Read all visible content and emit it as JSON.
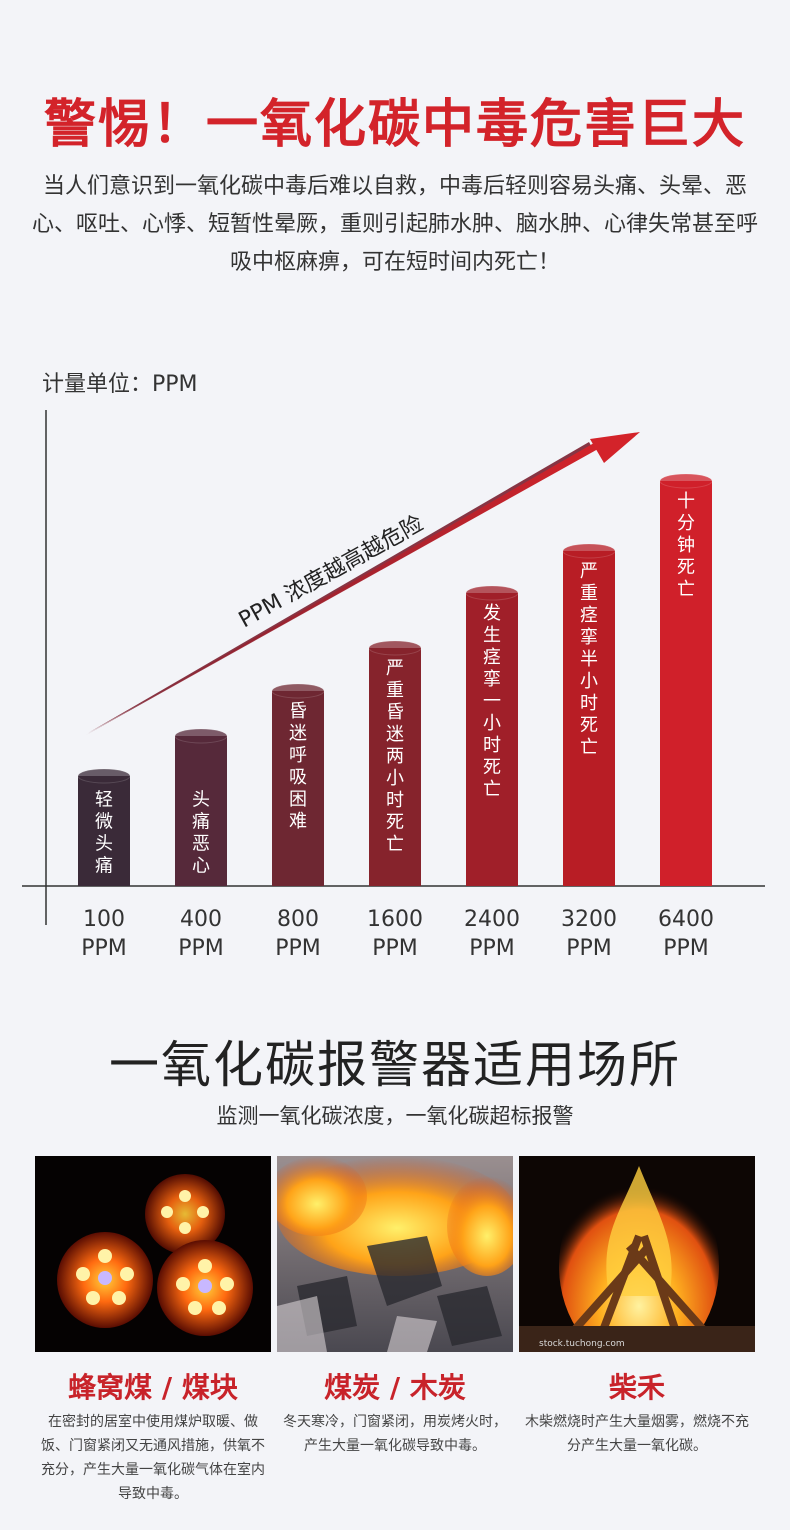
{
  "hero": {
    "title": "警惕！一氧化碳中毒危害巨大",
    "description": "当人们意识到一氧化碳中毒后难以自救，中毒后轻则容易头痛、头晕、恶心、呕吐、心悸、短暂性晕厥，重则引起肺水肿、脑水肿、心律失常甚至呼吸中枢麻痹，可在短时间内死亡！"
  },
  "chart_data": {
    "type": "bar",
    "unit_label": "计量单位：PPM",
    "trend_label": "PPM 浓度越高越危险",
    "categories": [
      "100 PPM",
      "400 PPM",
      "800 PPM",
      "1600 PPM",
      "2400 PPM",
      "3200 PPM",
      "6400 PPM"
    ],
    "tick_lines": [
      [
        "100",
        "PPM"
      ],
      [
        "400",
        "PPM"
      ],
      [
        "800",
        "PPM"
      ],
      [
        "1600",
        "PPM"
      ],
      [
        "2400",
        "PPM"
      ],
      [
        "3200",
        "PPM"
      ],
      [
        "6400",
        "PPM"
      ]
    ],
    "values": [
      100,
      400,
      800,
      1600,
      2400,
      3200,
      6400
    ],
    "bar_labels": [
      "轻微头痛",
      "头痛恶心",
      "昏迷呼吸困难",
      "严重昏迷两小时死亡",
      "发生痉挛一小时死亡",
      "严重痉挛半小时死亡",
      "十分钟死亡"
    ],
    "bar_colors": [
      "#3a2a38",
      "#56293a",
      "#6e2732",
      "#86232c",
      "#a01f29",
      "#b81d25",
      "#d0202a"
    ],
    "grid": false,
    "legend": "none"
  },
  "scenes": {
    "title": "一氧化碳报警器适用场所",
    "subtitle": "监测一氧化碳浓度，一氧化碳超标报警",
    "cards": [
      {
        "icon": "honeycomb-coal-photo",
        "title": "蜂窝煤 / 煤块",
        "description": "在密封的居室中使用煤炉取暖、做饭、门窗紧闭又无通风措施，供氧不充分，产生大量一氧化碳气体在室内导致中毒。"
      },
      {
        "icon": "charcoal-fire-photo",
        "title": "煤炭 / 木炭",
        "description": "冬天寒冷，门窗紧闭，用炭烤火时，产生大量一氧化碳导致中毒。"
      },
      {
        "icon": "bonfire-photo",
        "title": "柴禾",
        "description": "木柴燃烧时产生大量烟雾，燃烧不充分产生大量一氧化碳。",
        "watermark": "stock.tuchong.com"
      }
    ]
  }
}
